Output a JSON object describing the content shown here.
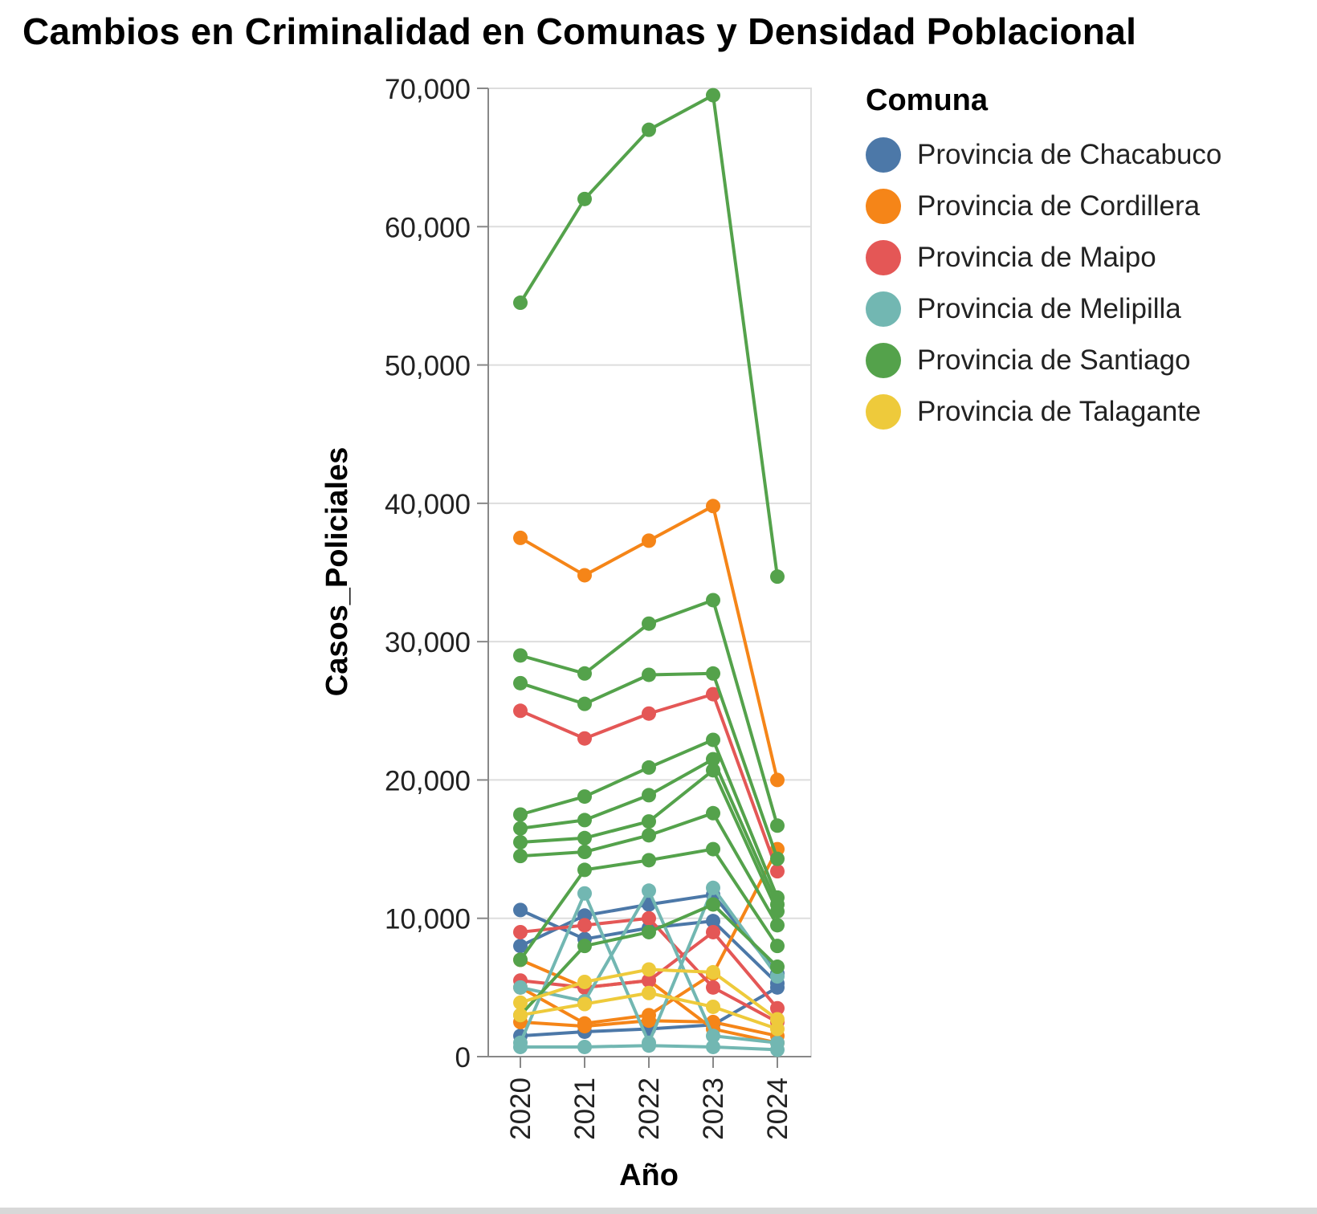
{
  "chart_data": {
    "type": "line",
    "title": "Cambios en Criminalidad en Comunas y Densidad Poblacional",
    "xlabel": "Año",
    "ylabel": "Casos_Policiales",
    "x": [
      "2020",
      "2021",
      "2022",
      "2023",
      "2024"
    ],
    "ylim": [
      0,
      70000
    ],
    "yticks": [
      0,
      10000,
      20000,
      30000,
      40000,
      50000,
      60000,
      70000
    ],
    "ytick_labels": [
      "0",
      "10,000",
      "20,000",
      "30,000",
      "40,000",
      "50,000",
      "60,000",
      "70,000"
    ],
    "grid": true,
    "legend": {
      "title": "Comuna",
      "position": "right"
    },
    "series": [
      {
        "name": "Provincia de Chacabuco",
        "color": "#4c78a8",
        "lines": [
          [
            1500,
            1800,
            2000,
            2300,
            5000
          ],
          [
            8000,
            10200,
            11000,
            11700,
            6000
          ],
          [
            10600,
            8500,
            9300,
            9800,
            5300
          ]
        ]
      },
      {
        "name": "Provincia de Cordillera",
        "color": "#f58518",
        "lines": [
          [
            37500,
            34800,
            37300,
            39800,
            20000
          ],
          [
            2500,
            2200,
            2600,
            2500,
            1500
          ],
          [
            5000,
            2400,
            3000,
            6000,
            15000
          ],
          [
            7000,
            5000,
            5500,
            2000,
            1000
          ]
        ]
      },
      {
        "name": "Provincia de Maipo",
        "color": "#e45756",
        "lines": [
          [
            25000,
            23000,
            24800,
            26200,
            13400
          ],
          [
            5500,
            5000,
            5500,
            9000,
            3500
          ],
          [
            9000,
            9500,
            10000,
            5000,
            2500
          ]
        ]
      },
      {
        "name": "Provincia de Melipilla",
        "color": "#72b7b2",
        "lines": [
          [
            1000,
            11800,
            1000,
            12200,
            5800
          ],
          [
            5000,
            4000,
            12000,
            1500,
            1000
          ],
          [
            700,
            700,
            800,
            700,
            500
          ]
        ]
      },
      {
        "name": "Provincia de Santiago",
        "color": "#54a24b",
        "lines": [
          [
            54500,
            62000,
            67000,
            69500,
            34700
          ],
          [
            29000,
            27700,
            31300,
            33000,
            16700
          ],
          [
            27000,
            25500,
            27600,
            27700,
            14300
          ],
          [
            17500,
            18800,
            20900,
            22900,
            11500
          ],
          [
            16500,
            17100,
            18900,
            21500,
            11000
          ],
          [
            15500,
            15800,
            17000,
            20700,
            10500
          ],
          [
            14500,
            14800,
            16000,
            17600,
            9500
          ],
          [
            7000,
            13500,
            14200,
            15000,
            8000
          ],
          [
            3000,
            8000,
            9000,
            11000,
            6500
          ]
        ]
      },
      {
        "name": "Provincia de Talagante",
        "color": "#eeca3b",
        "lines": [
          [
            3900,
            5400,
            6300,
            6100,
            2700
          ],
          [
            3000,
            3800,
            4600,
            3600,
            2000
          ]
        ]
      }
    ]
  }
}
